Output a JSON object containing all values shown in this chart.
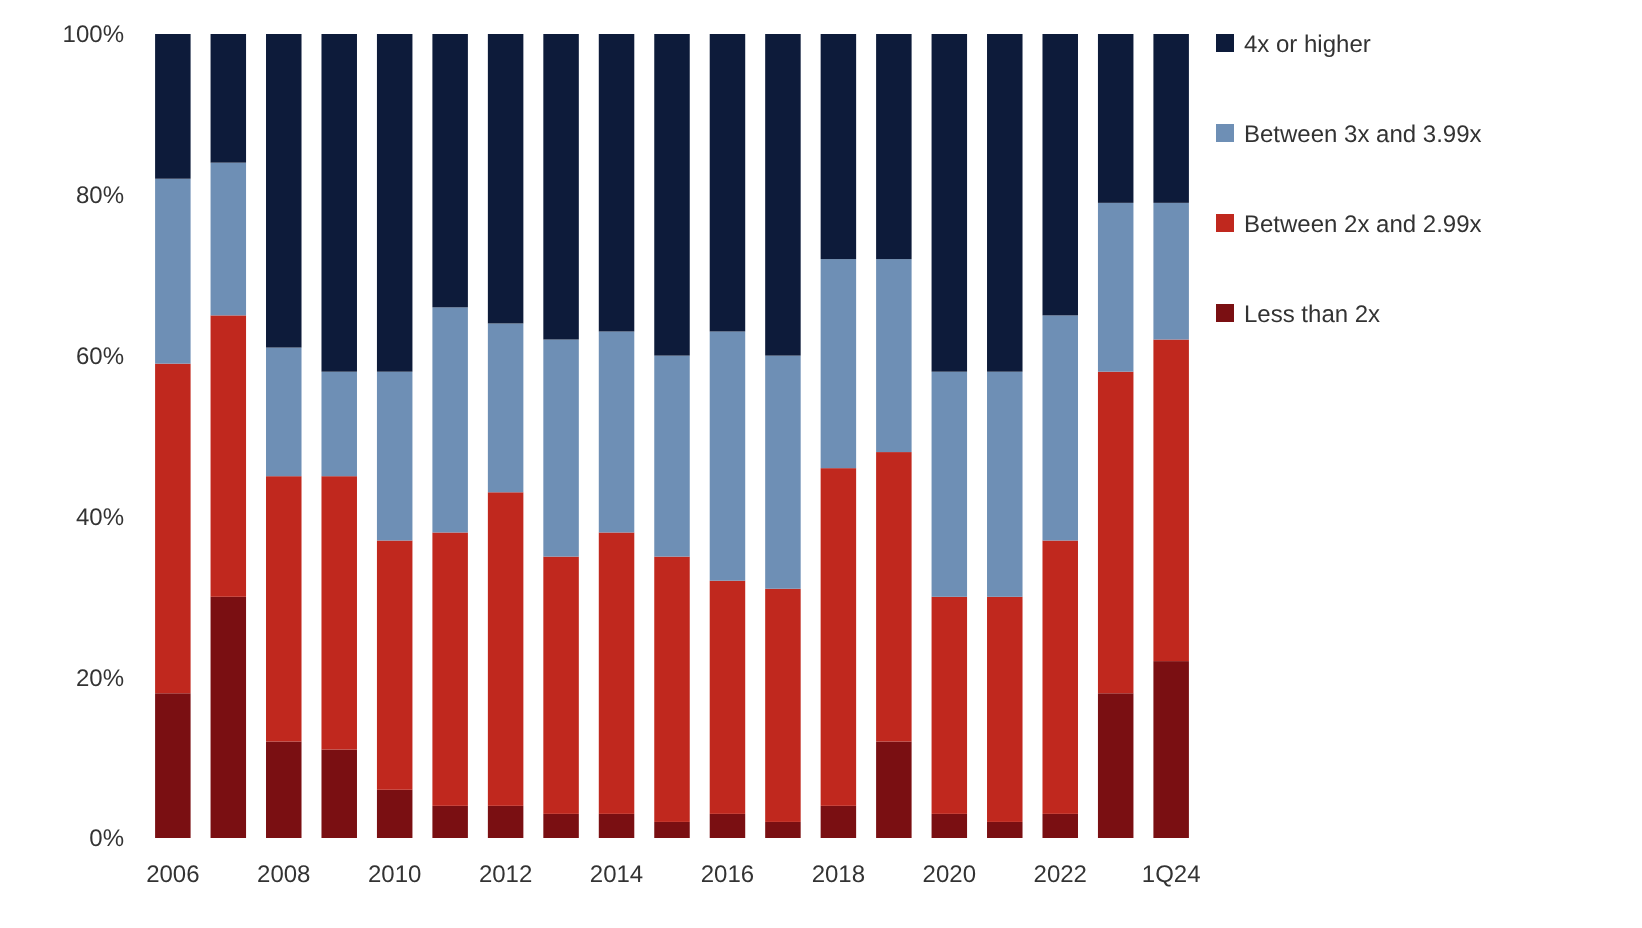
{
  "chart_data": {
    "type": "bar",
    "stacked": true,
    "categories": [
      "2006",
      null,
      "2008",
      null,
      "2010",
      null,
      "2012",
      null,
      "2014",
      null,
      "2016",
      null,
      "2018",
      null,
      "2020",
      null,
      "2022",
      null,
      "1Q24"
    ],
    "series": [
      {
        "name": "Less than 2x",
        "color": "#7a0f12",
        "values": [
          18,
          30,
          12,
          11,
          6,
          4,
          4,
          3,
          3,
          2,
          3,
          2,
          4,
          12,
          3,
          2,
          3,
          18,
          22
        ]
      },
      {
        "name": "Between 2x and 2.99x",
        "color": "#c0281e",
        "values": [
          41,
          35,
          33,
          34,
          31,
          34,
          39,
          32,
          35,
          33,
          29,
          29,
          42,
          36,
          27,
          28,
          34,
          40,
          40
        ]
      },
      {
        "name": "Between 3x and 3.99x",
        "color": "#6e8fb5",
        "values": [
          23,
          19,
          16,
          13,
          21,
          28,
          21,
          27,
          25,
          25,
          31,
          29,
          26,
          24,
          28,
          28,
          28,
          21,
          17
        ]
      },
      {
        "name": "4x or higher",
        "color": "#0d1b3a",
        "values": [
          18,
          16,
          39,
          42,
          42,
          34,
          36,
          38,
          37,
          40,
          37,
          40,
          28,
          28,
          42,
          42,
          35,
          21,
          21
        ]
      }
    ],
    "ylim": [
      0,
      100
    ],
    "yticks": [
      {
        "value": 0,
        "label": "0%"
      },
      {
        "value": 20,
        "label": "20%"
      },
      {
        "value": 40,
        "label": "40%"
      },
      {
        "value": 60,
        "label": "60%"
      },
      {
        "value": 80,
        "label": "80%"
      },
      {
        "value": 100,
        "label": "100%"
      }
    ],
    "legend": "right"
  }
}
